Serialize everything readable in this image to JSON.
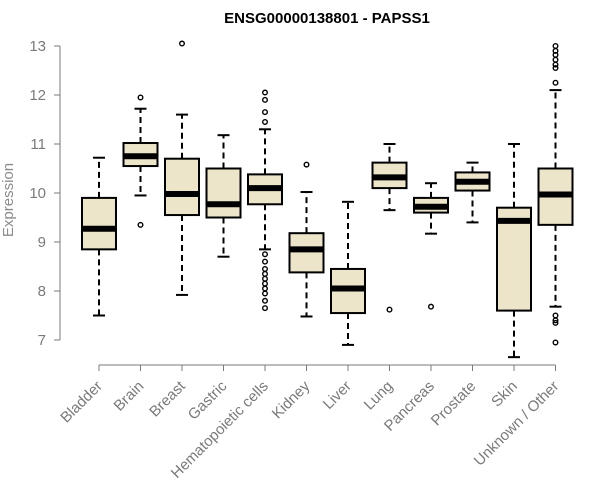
{
  "chart_data": {
    "type": "box",
    "title": "ENSG00000138801 - PAPSS1",
    "ylabel": "Expression",
    "xlabel": "",
    "ylim": [
      7,
      13
    ],
    "yticks": [
      7,
      8,
      9,
      10,
      11,
      12,
      13
    ],
    "box_fill": "#ede5ca",
    "categories": [
      "Bladder",
      "Brain",
      "Breast",
      "Gastric",
      "Hematopoietic cells",
      "Kidney",
      "Liver",
      "Lung",
      "Pancreas",
      "Prostate",
      "Skin",
      "Unknown / Other"
    ],
    "boxes": [
      {
        "min": 7.5,
        "q1": 8.85,
        "median": 9.27,
        "q3": 9.9,
        "max": 10.72,
        "outliers": []
      },
      {
        "min": 9.95,
        "q1": 10.55,
        "median": 10.75,
        "q3": 11.02,
        "max": 11.72,
        "outliers": [
          9.35,
          11.95
        ]
      },
      {
        "min": 7.92,
        "q1": 9.55,
        "median": 9.98,
        "q3": 10.7,
        "max": 11.6,
        "outliers": [
          13.05
        ]
      },
      {
        "min": 8.7,
        "q1": 9.5,
        "median": 9.77,
        "q3": 10.5,
        "max": 11.18,
        "outliers": []
      },
      {
        "min": 8.85,
        "q1": 9.77,
        "median": 10.1,
        "q3": 10.38,
        "max": 11.3,
        "outliers": [
          12.05,
          11.9,
          11.65,
          11.45,
          8.75,
          8.6,
          8.45,
          8.35,
          8.25,
          8.15,
          8.05,
          7.95,
          7.8,
          7.65
        ]
      },
      {
        "min": 7.48,
        "q1": 8.38,
        "median": 8.85,
        "q3": 9.18,
        "max": 10.02,
        "outliers": [
          10.58
        ]
      },
      {
        "min": 6.9,
        "q1": 7.55,
        "median": 8.05,
        "q3": 8.45,
        "max": 9.82,
        "outliers": []
      },
      {
        "min": 9.65,
        "q1": 10.1,
        "median": 10.32,
        "q3": 10.62,
        "max": 11.0,
        "outliers": [
          7.62
        ]
      },
      {
        "min": 9.17,
        "q1": 9.6,
        "median": 9.72,
        "q3": 9.9,
        "max": 10.2,
        "outliers": [
          7.68
        ]
      },
      {
        "min": 9.4,
        "q1": 10.05,
        "median": 10.23,
        "q3": 10.42,
        "max": 10.62,
        "outliers": []
      },
      {
        "min": 6.65,
        "q1": 7.6,
        "median": 9.43,
        "q3": 9.7,
        "max": 11.0,
        "outliers": []
      },
      {
        "min": 7.68,
        "q1": 9.35,
        "median": 9.97,
        "q3": 10.5,
        "max": 12.1,
        "outliers": [
          13.0,
          12.9,
          12.82,
          12.72,
          12.62,
          12.55,
          12.25,
          7.5,
          7.4,
          7.35,
          6.95
        ]
      }
    ]
  }
}
